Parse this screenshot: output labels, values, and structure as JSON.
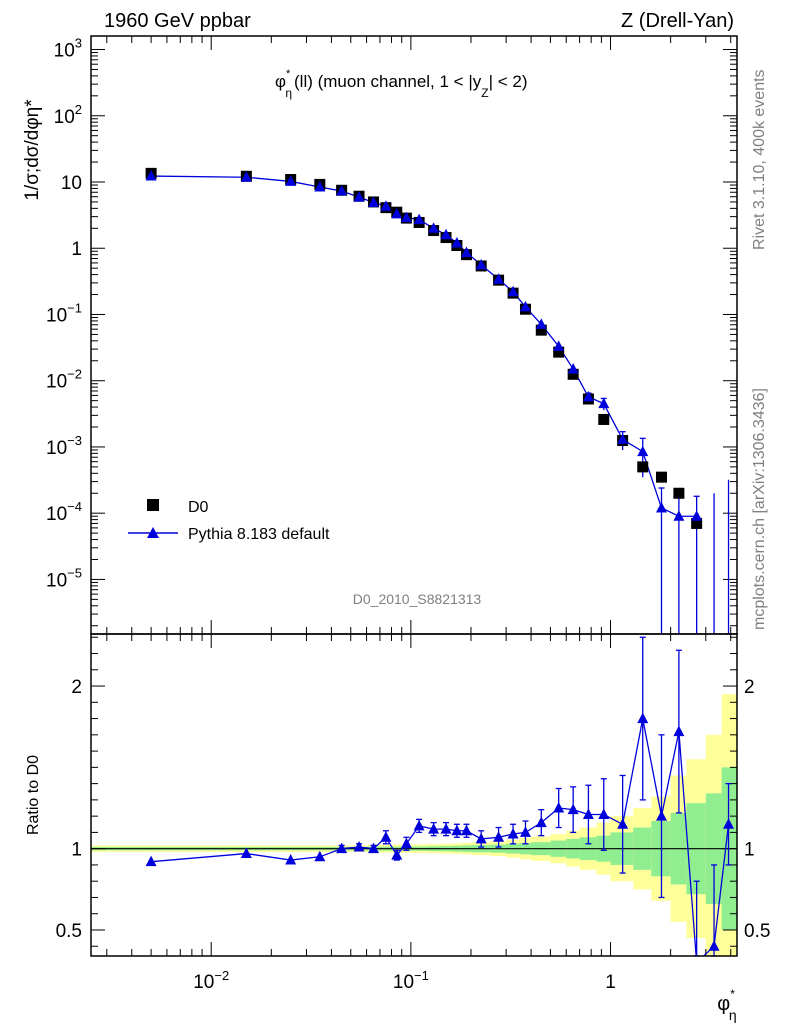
{
  "header": {
    "left": "1960 GeV ppbar",
    "right": "Z (Drell-Yan)"
  },
  "side_labels": {
    "rivet": "Rivet 3.1.10,  400k events",
    "mcplots": "mcplots.cern.ch [arXiv:1306.3436]"
  },
  "watermark": "D0_2010_S8821313",
  "colors": {
    "data": "#000000",
    "mc": "#0000dd",
    "band_inner": "#90ee90",
    "band_outer": "#ffff99"
  },
  "chart_data": [
    {
      "type": "scatter",
      "title": "φη*(ll) (muon channel, 1 < |yZ| < 2)",
      "title_parts": {
        "main": "φ",
        "sup": "*",
        "sub": "η",
        "text": "(ll) (muon channel, 1 < |y",
        "sub2": "Z",
        "tail": "| < 2)"
      },
      "ylabel": "1/σ;dσ/dφη*",
      "xscale": "log",
      "yscale": "log",
      "xlim": [
        0.0025,
        4.3
      ],
      "ylim": [
        1.5e-06,
        1600
      ],
      "yticks": [
        {
          "v": 1e-05,
          "base": "10",
          "exp": "−5"
        },
        {
          "v": 0.0001,
          "base": "10",
          "exp": "−4"
        },
        {
          "v": 0.001,
          "base": "10",
          "exp": "−3"
        },
        {
          "v": 0.01,
          "base": "10",
          "exp": "−2"
        },
        {
          "v": 0.1,
          "base": "10",
          "exp": "−1"
        },
        {
          "v": 1,
          "base": "1",
          "exp": ""
        },
        {
          "v": 10,
          "base": "10",
          "exp": ""
        },
        {
          "v": 100,
          "base": "10",
          "exp": "2"
        },
        {
          "v": 1000,
          "base": "10",
          "exp": "3"
        }
      ],
      "legend": {
        "position": "bottom-left",
        "entries": [
          "D0",
          "Pythia 8.183 default"
        ]
      },
      "x": [
        0.005,
        0.015,
        0.025,
        0.035,
        0.045,
        0.055,
        0.065,
        0.075,
        0.085,
        0.095,
        0.11,
        0.13,
        0.15,
        0.17,
        0.19,
        0.225,
        0.275,
        0.325,
        0.375,
        0.45,
        0.55,
        0.65,
        0.775,
        0.925,
        1.15,
        1.45,
        1.8,
        2.2,
        2.7,
        3.3,
        3.9
      ],
      "series": [
        {
          "name": "D0",
          "marker": "square",
          "values": [
            13.5,
            12.2,
            10.9,
            9.2,
            7.5,
            6.1,
            5.0,
            4.1,
            3.5,
            2.85,
            2.45,
            1.85,
            1.45,
            1.1,
            0.8,
            0.54,
            0.33,
            0.21,
            0.12,
            0.058,
            0.027,
            0.0125,
            0.0053,
            0.0026,
            0.00125,
            0.0005,
            0.00035,
            0.0002,
            7e-05,
            null,
            null
          ]
        },
        {
          "name": "Pythia 8.183 default",
          "marker": "triangle",
          "values": [
            12.3,
            11.8,
            10.2,
            8.4,
            7.3,
            5.9,
            4.9,
            4.3,
            3.3,
            2.9,
            2.7,
            2.0,
            1.6,
            1.2,
            0.86,
            0.56,
            0.34,
            0.22,
            0.13,
            0.071,
            0.033,
            0.015,
            0.0057,
            0.0045,
            0.0013,
            0.00085,
            0.00012,
            9e-05,
            9e-05,
            null,
            null
          ],
          "err_low": [
            null,
            null,
            null,
            null,
            null,
            null,
            null,
            null,
            null,
            null,
            null,
            null,
            null,
            null,
            null,
            null,
            null,
            null,
            null,
            null,
            null,
            null,
            0.0008,
            0.0009,
            0.0004,
            0.0005,
            0.00012,
            9e-05,
            9e-05,
            null,
            null
          ],
          "err_high": [
            null,
            null,
            null,
            null,
            null,
            null,
            null,
            null,
            null,
            null,
            null,
            null,
            null,
            null,
            null,
            null,
            null,
            null,
            null,
            null,
            null,
            null,
            0.0008,
            0.0009,
            0.0004,
            0.0005,
            0.00012,
            9e-05,
            9e-05,
            null,
            null
          ]
        }
      ]
    },
    {
      "type": "line",
      "ylabel": "Ratio to D0",
      "xlabel": "φη*",
      "xscale": "log",
      "xlim": [
        0.0025,
        4.3
      ],
      "ylim": [
        0.34,
        2.32
      ],
      "yticks": [
        0.5,
        1,
        2
      ],
      "xticks": [
        {
          "v": 0.01,
          "base": "10",
          "exp": "−2"
        },
        {
          "v": 0.1,
          "base": "10",
          "exp": "−1"
        },
        {
          "v": 1,
          "base": "1",
          "exp": ""
        }
      ],
      "x": [
        0.005,
        0.015,
        0.025,
        0.035,
        0.045,
        0.055,
        0.065,
        0.075,
        0.085,
        0.095,
        0.11,
        0.13,
        0.15,
        0.17,
        0.19,
        0.225,
        0.275,
        0.325,
        0.375,
        0.45,
        0.55,
        0.65,
        0.775,
        0.925,
        1.15,
        1.45,
        1.8,
        2.2,
        2.7,
        3.3,
        3.9
      ],
      "ratio": [
        0.92,
        0.97,
        0.93,
        0.95,
        1.0,
        1.01,
        1.0,
        1.07,
        0.96,
        1.03,
        1.14,
        1.12,
        1.12,
        1.11,
        1.11,
        1.06,
        1.07,
        1.09,
        1.1,
        1.16,
        1.25,
        1.24,
        1.21,
        1.21,
        1.15,
        1.8,
        1.2,
        1.72,
        0.3,
        0.4,
        1.15
      ],
      "ratio_err": [
        0,
        0,
        0,
        0,
        0.02,
        0.02,
        0.02,
        0.04,
        0.03,
        0.04,
        0.04,
        0.04,
        0.04,
        0.04,
        0.04,
        0.05,
        0.06,
        0.06,
        0.07,
        0.08,
        0.12,
        0.14,
        0.18,
        0.22,
        0.3,
        0.5,
        0.5,
        0.5,
        0.5,
        0.5,
        0.25
      ],
      "band_edges": [
        0.0025,
        0.01,
        0.02,
        0.04,
        0.06,
        0.08,
        0.1,
        0.12,
        0.14,
        0.16,
        0.18,
        0.2,
        0.25,
        0.3,
        0.35,
        0.4,
        0.5,
        0.6,
        0.7,
        0.85,
        1.0,
        1.3,
        1.6,
        2.0,
        2.4,
        3.0,
        3.6,
        4.3
      ],
      "band_inner": [
        0.01,
        0.01,
        0.01,
        0.01,
        0.012,
        0.012,
        0.013,
        0.015,
        0.016,
        0.018,
        0.02,
        0.022,
        0.025,
        0.03,
        0.035,
        0.04,
        0.05,
        0.06,
        0.07,
        0.08,
        0.1,
        0.13,
        0.17,
        0.22,
        0.28,
        0.34,
        0.5
      ],
      "band_outer": [
        0.02,
        0.02,
        0.02,
        0.02,
        0.024,
        0.025,
        0.026,
        0.028,
        0.03,
        0.032,
        0.035,
        0.04,
        0.045,
        0.055,
        0.065,
        0.075,
        0.09,
        0.11,
        0.13,
        0.16,
        0.2,
        0.25,
        0.32,
        0.45,
        0.55,
        0.7,
        0.95
      ]
    }
  ]
}
